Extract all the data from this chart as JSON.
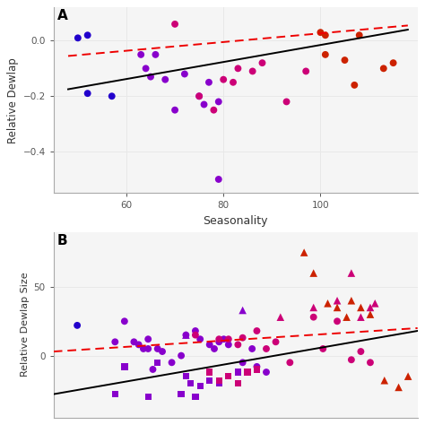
{
  "panel_A": {
    "label": "A",
    "xlabel": "Seasonality",
    "ylabel": "Relative Dewlap",
    "xlim": [
      45,
      120
    ],
    "ylim": [
      -0.55,
      0.12
    ],
    "yticks": [
      0.0,
      -0.2,
      -0.4
    ],
    "xticks": [
      60,
      80,
      100
    ],
    "pt_blue": {
      "x": [
        50,
        52,
        52,
        57
      ],
      "y": [
        0.01,
        0.02,
        -0.19,
        -0.2
      ],
      "color": "#2200cc"
    },
    "pt_purple": {
      "x": [
        63,
        64,
        65,
        66,
        68,
        70,
        72,
        75,
        76,
        77,
        79,
        79
      ],
      "y": [
        -0.05,
        -0.1,
        -0.13,
        -0.05,
        -0.14,
        -0.25,
        -0.12,
        -0.2,
        -0.23,
        -0.15,
        -0.22,
        -0.5
      ],
      "color": "#8800cc"
    },
    "pt_magenta": {
      "x": [
        70,
        75,
        78,
        80,
        82,
        83,
        86,
        88,
        93,
        97
      ],
      "y": [
        0.06,
        -0.2,
        -0.25,
        -0.14,
        -0.15,
        -0.1,
        -0.11,
        -0.08,
        -0.22,
        -0.11
      ],
      "color": "#cc0077"
    },
    "pt_red": {
      "x": [
        100,
        101,
        101,
        105,
        107,
        108,
        113,
        115
      ],
      "y": [
        0.03,
        0.02,
        -0.05,
        -0.07,
        -0.16,
        0.02,
        -0.1,
        -0.08
      ],
      "color": "#cc2200"
    },
    "black_line": {
      "x": [
        48,
        118
      ],
      "y": [
        -0.175,
        0.04
      ]
    },
    "red_line": {
      "x": [
        48,
        118
      ],
      "y": [
        -0.055,
        0.055
      ]
    }
  },
  "panel_B": {
    "label": "B",
    "xlabel": "",
    "ylabel": "Relative Dewlap Size",
    "xlim": [
      45,
      122
    ],
    "ylim": [
      -45,
      90
    ],
    "yticks": [
      0,
      50
    ],
    "xticks": [],
    "circles_blue": {
      "x": [
        50
      ],
      "y": [
        22
      ],
      "color": "#2200cc"
    },
    "circles_purple": {
      "x": [
        58,
        60,
        62,
        63,
        64,
        65,
        65,
        66,
        67,
        68,
        70,
        72,
        73,
        75,
        76,
        78,
        79,
        80,
        81,
        82,
        85,
        87,
        88,
        90
      ],
      "y": [
        10,
        25,
        10,
        8,
        5,
        5,
        12,
        -10,
        5,
        3,
        -5,
        0,
        15,
        18,
        12,
        8,
        5,
        10,
        12,
        8,
        -5,
        5,
        -8,
        -12
      ],
      "color": "#8800cc"
    },
    "circles_magenta": {
      "x": [
        75,
        80,
        82,
        84,
        85,
        88,
        90,
        92,
        95,
        100,
        102,
        105,
        108,
        110,
        112
      ],
      "y": [
        15,
        12,
        12,
        8,
        13,
        18,
        5,
        10,
        -5,
        28,
        5,
        25,
        -3,
        3,
        -5
      ],
      "color": "#cc0077"
    },
    "triangles_purple": {
      "x": [
        73,
        85
      ],
      "y": [
        15,
        33
      ],
      "color": "#8800cc"
    },
    "triangles_magenta": {
      "x": [
        93,
        100,
        105,
        108,
        110,
        112,
        113
      ],
      "y": [
        28,
        35,
        40,
        60,
        28,
        35,
        38
      ],
      "color": "#cc0077"
    },
    "triangles_red": {
      "x": [
        98,
        100,
        103,
        105,
        107,
        108,
        110,
        112,
        115,
        118,
        120
      ],
      "y": [
        75,
        60,
        38,
        35,
        28,
        40,
        35,
        30,
        -18,
        -23,
        -15
      ],
      "color": "#cc2200"
    },
    "squares_purple": {
      "x": [
        58,
        60,
        65,
        67,
        72,
        73,
        74,
        75,
        76,
        78,
        80,
        82,
        84
      ],
      "y": [
        -28,
        -8,
        -30,
        -5,
        -28,
        -15,
        -20,
        -30,
        -22,
        -18,
        -20,
        -15,
        -12
      ],
      "color": "#8800cc"
    },
    "squares_magenta": {
      "x": [
        78,
        80,
        82,
        84,
        86,
        88
      ],
      "y": [
        -12,
        -18,
        -15,
        -20,
        -12,
        -10
      ],
      "color": "#cc0077"
    },
    "black_line": {
      "x": [
        45,
        122
      ],
      "y": [
        -28,
        18
      ]
    },
    "red_line": {
      "x": [
        45,
        122
      ],
      "y": [
        3,
        20
      ]
    }
  },
  "bg_color": "#ffffff",
  "grid_color": "#e8e8e8",
  "panel_bg": "#f5f5f5"
}
